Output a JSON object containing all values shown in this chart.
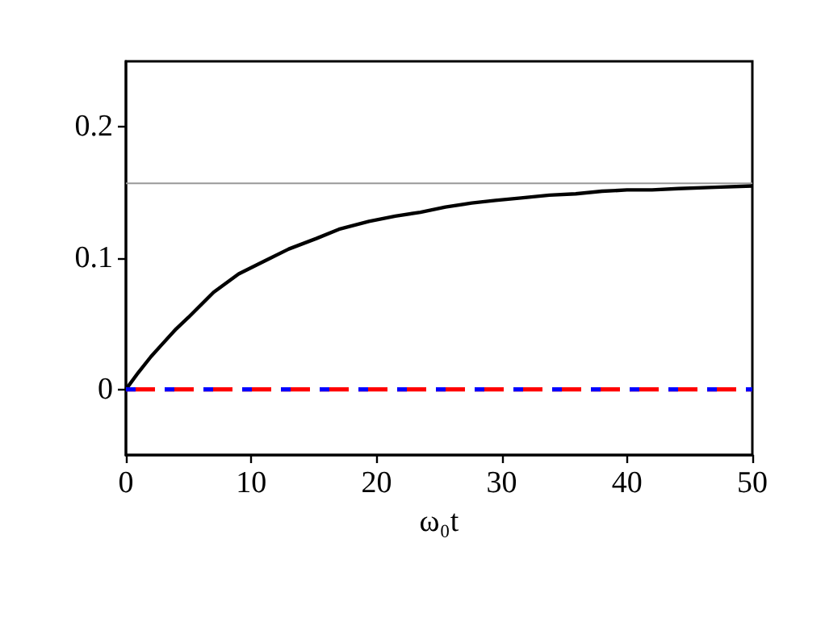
{
  "chart_data": {
    "type": "line",
    "xlabel": "ω₀t",
    "xlim": [
      0,
      50
    ],
    "xticks": [
      0,
      10,
      20,
      30,
      40,
      50
    ],
    "ylim": [
      -0.05,
      0.25
    ],
    "yticks": [
      0,
      0.1,
      0.2
    ],
    "grid": false,
    "marker": "none",
    "series": [
      {
        "color": "#000000",
        "line_style": "solid",
        "x": [
          0,
          1,
          2,
          2.85,
          4,
          5,
          7,
          9,
          11.1,
          13,
          15.2,
          17,
          19.4,
          21.5,
          23.5,
          25.5,
          27.6,
          29.5,
          31.7,
          33.8,
          35.9,
          38,
          40,
          42,
          44.1,
          47,
          50
        ],
        "values": [
          0,
          0.013,
          0.025,
          0.034,
          0.046,
          0.055,
          0.074,
          0.088,
          0.098,
          0.107,
          0.115,
          0.122,
          0.128,
          0.132,
          0.135,
          0.139,
          0.142,
          0.144,
          0.146,
          0.148,
          0.149,
          0.151,
          0.152,
          0.152,
          0.153,
          0.154,
          0.155
        ]
      },
      {
        "color": "#0000ff",
        "line_style": "dashed",
        "x": [
          0,
          50
        ],
        "values": [
          0,
          0
        ]
      },
      {
        "color": "#ff0000",
        "line_style": "dashed",
        "x": [
          0,
          50
        ],
        "values": [
          0,
          0
        ]
      }
    ],
    "ref_lines": [
      {
        "axis": "y",
        "value": 0.157,
        "color": "#999999",
        "line_style": "solid"
      }
    ]
  }
}
